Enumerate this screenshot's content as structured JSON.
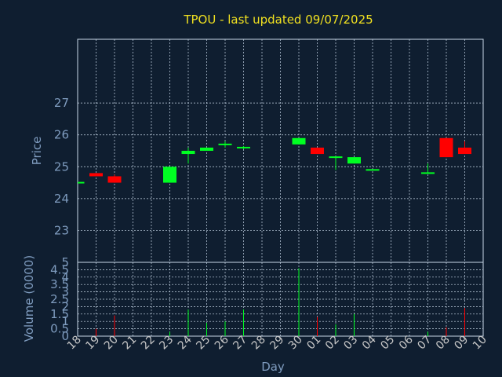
{
  "title": "TPOU - last updated 09/07/2025",
  "chart_data": [
    {
      "type": "candlestick",
      "ylabel": "Price",
      "ylim": [
        22,
        29
      ],
      "yticks": [
        23,
        24,
        25,
        26,
        27
      ],
      "grid": true,
      "colors": {
        "up": "#00ff22",
        "down": "#ff0000",
        "frame": "#c8d8e8",
        "grid": "#c8d8e8"
      },
      "x": [
        "18",
        "19",
        "20",
        "21",
        "22",
        "23",
        "24",
        "25",
        "26",
        "27",
        "28",
        "29",
        "30",
        "01",
        "02",
        "03",
        "04",
        "05",
        "06",
        "07",
        "08",
        "09",
        "10"
      ],
      "candles": [
        {
          "x": "18",
          "open": 24.5,
          "close": 24.5,
          "high": 24.5,
          "low": 24.5
        },
        {
          "x": "19",
          "open": 24.8,
          "close": 24.7,
          "high": 24.8,
          "low": 24.7
        },
        {
          "x": "20",
          "open": 24.7,
          "close": 24.5,
          "high": 24.75,
          "low": 24.5
        },
        {
          "x": "23",
          "open": 24.5,
          "close": 25.0,
          "high": 25.0,
          "low": 24.5
        },
        {
          "x": "24",
          "open": 25.4,
          "close": 25.5,
          "high": 25.6,
          "low": 25.1
        },
        {
          "x": "25",
          "open": 25.5,
          "close": 25.6,
          "high": 25.6,
          "low": 25.5
        },
        {
          "x": "26",
          "open": 25.7,
          "close": 25.7,
          "high": 25.8,
          "low": 25.6
        },
        {
          "x": "27",
          "open": 25.6,
          "close": 25.6,
          "high": 25.65,
          "low": 25.55
        },
        {
          "x": "30",
          "open": 25.7,
          "close": 25.9,
          "high": 25.9,
          "low": 25.7
        },
        {
          "x": "01",
          "open": 25.6,
          "close": 25.4,
          "high": 25.6,
          "low": 25.4
        },
        {
          "x": "02",
          "open": 25.3,
          "close": 25.3,
          "high": 25.3,
          "low": 24.9
        },
        {
          "x": "03",
          "open": 25.1,
          "close": 25.3,
          "high": 25.3,
          "low": 25.1
        },
        {
          "x": "04",
          "open": 24.9,
          "close": 24.9,
          "high": 24.9,
          "low": 24.9
        },
        {
          "x": "07",
          "open": 24.8,
          "close": 24.8,
          "high": 25.1,
          "low": 24.8
        },
        {
          "x": "08",
          "open": 25.9,
          "close": 25.3,
          "high": 25.9,
          "low": 25.3
        },
        {
          "x": "09",
          "open": 25.6,
          "close": 25.4,
          "high": 25.8,
          "low": 25.4
        }
      ]
    },
    {
      "type": "bar",
      "xlabel": "Day",
      "ylabel": "Volume (0000)",
      "ylim": [
        0,
        5
      ],
      "yticks": [
        "0",
        "0.5",
        "1",
        "1.5",
        "2",
        "2.5",
        "3",
        "3.5",
        "4",
        "4.5",
        "5"
      ],
      "grid": true,
      "categories": [
        "18",
        "19",
        "20",
        "21",
        "22",
        "23",
        "24",
        "25",
        "26",
        "27",
        "28",
        "29",
        "30",
        "01",
        "02",
        "03",
        "04",
        "05",
        "06",
        "07",
        "08",
        "09",
        "10"
      ],
      "values": [
        0,
        0.5,
        1.4,
        0,
        0,
        0.3,
        1.8,
        0.9,
        1.0,
        1.8,
        0,
        0,
        4.6,
        1.3,
        0.8,
        1.5,
        0,
        0,
        0,
        0.3,
        0.6,
        1.9,
        0
      ],
      "bar_colors": [
        "",
        "#ff0000",
        "#ff0000",
        "",
        "",
        "#00ff22",
        "#00ff22",
        "#00ff22",
        "#00ff22",
        "#00ff22",
        "",
        "",
        "#00ff22",
        "#ff0000",
        "#00ff22",
        "#00ff22",
        "",
        "",
        "",
        "#00ff22",
        "#ff0000",
        "#ff0000",
        ""
      ]
    }
  ]
}
